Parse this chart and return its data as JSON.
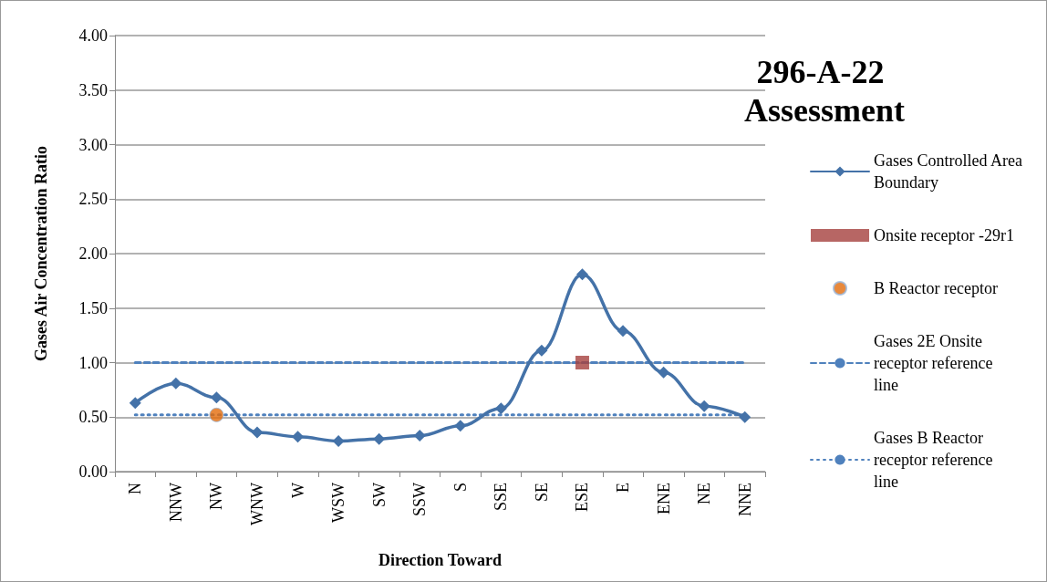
{
  "chart_data": {
    "type": "line",
    "title": "296-A-22 Assessment",
    "xlabel": "Direction Toward",
    "ylabel": "Gases Air Concentration Ratio",
    "categories": [
      "N",
      "NNW",
      "NW",
      "WNW",
      "W",
      "WSW",
      "SW",
      "SSW",
      "S",
      "SSE",
      "SE",
      "ESE",
      "E",
      "ENE",
      "NE",
      "NNE"
    ],
    "series": [
      {
        "name": "Gases Controlled Area Boundary",
        "color": "#4472a8",
        "marker": "diamond",
        "values": [
          0.63,
          0.81,
          0.68,
          0.36,
          0.32,
          0.28,
          0.3,
          0.33,
          0.42,
          0.58,
          1.11,
          1.81,
          1.29,
          0.91,
          0.6,
          0.5
        ]
      },
      {
        "name": "Onsite receptor -29r1",
        "type": "scatter",
        "color": "#a5403d",
        "marker": "square",
        "x": [
          "ESE"
        ],
        "values": [
          1.0
        ]
      },
      {
        "name": "B Reactor receptor",
        "type": "scatter",
        "color": "#e46c0a",
        "marker": "circle",
        "x": [
          "NW"
        ],
        "values": [
          0.52
        ]
      },
      {
        "name": "Gases 2E Onsite receptor reference line",
        "color": "#4f81bd",
        "marker": "none",
        "line_style": "dashed",
        "values": [
          1.0,
          1.0,
          1.0,
          1.0,
          1.0,
          1.0,
          1.0,
          1.0,
          1.0,
          1.0,
          1.0,
          1.0,
          1.0,
          1.0,
          1.0,
          1.0
        ]
      },
      {
        "name": "Gases B Reactor receptor reference line",
        "color": "#4f81bd",
        "marker": "none",
        "line_style": "dotted",
        "values": [
          0.52,
          0.52,
          0.52,
          0.52,
          0.52,
          0.52,
          0.52,
          0.52,
          0.52,
          0.52,
          0.52,
          0.52,
          0.52,
          0.52,
          0.52,
          0.52
        ]
      }
    ],
    "ylim": [
      0,
      4
    ],
    "yticks": [
      {
        "value": 0,
        "label": "0.00"
      },
      {
        "value": 0.5,
        "label": "0.50"
      },
      {
        "value": 1,
        "label": "1.00"
      },
      {
        "value": 1.5,
        "label": "1.50"
      },
      {
        "value": 2,
        "label": "2.00"
      },
      {
        "value": 2.5,
        "label": "2.50"
      },
      {
        "value": 3,
        "label": "3.00"
      },
      {
        "value": 3.5,
        "label": "3.50"
      },
      {
        "value": 4,
        "label": "4.00"
      }
    ],
    "grid": "y",
    "legend": "right"
  }
}
